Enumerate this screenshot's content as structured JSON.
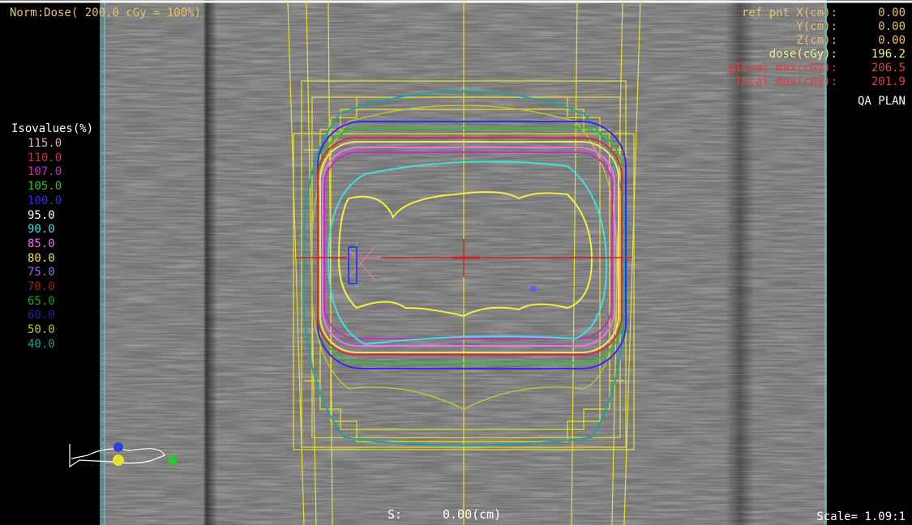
{
  "header": {
    "norm_label": "Norm:Dose( 200.0 cGy = 100%)"
  },
  "isovalues": {
    "title": "Isovalues(%)",
    "items": [
      {
        "label": "115.0",
        "color": "#e8b0a0"
      },
      {
        "label": "110.0",
        "color": "#d83030"
      },
      {
        "label": "107.0",
        "color": "#c030c0"
      },
      {
        "label": "105.0",
        "color": "#30c030"
      },
      {
        "label": "100.0",
        "color": "#3030e0"
      },
      {
        "label": "95.0",
        "color": "#ffffff"
      },
      {
        "label": "90.0",
        "color": "#40e0e0"
      },
      {
        "label": "85.0",
        "color": "#f070f0"
      },
      {
        "label": "80.0",
        "color": "#f0e070"
      },
      {
        "label": "75.0",
        "color": "#9070f0"
      },
      {
        "label": "70.0",
        "color": "#a02020"
      },
      {
        "label": "65.0",
        "color": "#20a020"
      },
      {
        "label": "60.0",
        "color": "#2020a0"
      },
      {
        "label": "50.0",
        "color": "#c0c040"
      },
      {
        "label": "40.0",
        "color": "#20a0a0"
      }
    ]
  },
  "ref_point": {
    "rows": [
      {
        "label": "ref pnt X(cm):",
        "value": "0.00",
        "color": "#e8c070"
      },
      {
        "label": "Y(cm):",
        "value": "0.00",
        "color": "#e8c070"
      },
      {
        "label": "Z(cm):",
        "value": "0.00",
        "color": "#e8c070"
      },
      {
        "label": "dose(cGy):",
        "value": "196.2",
        "color": "#f0f080"
      },
      {
        "label": "global max(cGy):",
        "value": "206.5",
        "color": "#e04040"
      },
      {
        "label": "local max(cGy):",
        "value": "201.9",
        "color": "#e04040"
      }
    ]
  },
  "plan_label": "QA PLAN",
  "slice": {
    "label": "S:",
    "value": "0.00(cm)"
  },
  "scale": "Scale= 1.09:1",
  "colors": {
    "field_outline": "#e8e030",
    "crosshair": "#d02020",
    "cyan_border": "#60c0c0"
  }
}
